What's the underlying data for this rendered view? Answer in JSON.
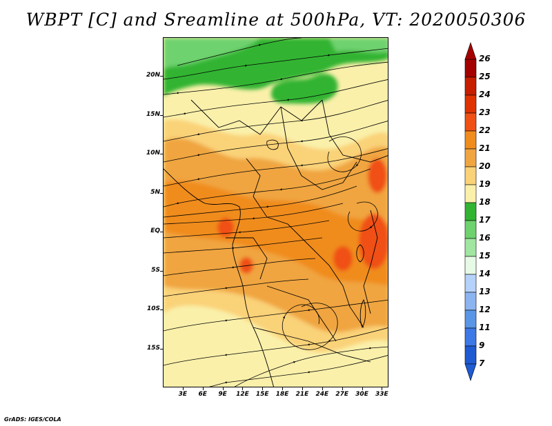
{
  "title": "WBPT [C] and Sreamline at 500hPa, VT: 2020050306",
  "credit": "GrADS: IGES/COLA",
  "map": {
    "lon_range": [
      0,
      34
    ],
    "lat_range": [
      -20,
      25
    ],
    "lat_ticks": [
      {
        "value": 20,
        "label": "20N"
      },
      {
        "value": 15,
        "label": "15N"
      },
      {
        "value": 10,
        "label": "10N"
      },
      {
        "value": 5,
        "label": "5N"
      },
      {
        "value": 0,
        "label": "EQ"
      },
      {
        "value": -5,
        "label": "5S"
      },
      {
        "value": -10,
        "label": "10S"
      },
      {
        "value": -15,
        "label": "15S"
      }
    ],
    "lon_ticks": [
      {
        "value": 3,
        "label": "3E"
      },
      {
        "value": 6,
        "label": "6E"
      },
      {
        "value": 9,
        "label": "9E"
      },
      {
        "value": 12,
        "label": "12E"
      },
      {
        "value": 15,
        "label": "15E"
      },
      {
        "value": 18,
        "label": "18E"
      },
      {
        "value": 21,
        "label": "21E"
      },
      {
        "value": 24,
        "label": "24E"
      },
      {
        "value": 27,
        "label": "27E"
      },
      {
        "value": 30,
        "label": "30E"
      },
      {
        "value": 33,
        "label": "33E"
      }
    ]
  },
  "colorbar": {
    "labels": [
      "26",
      "25",
      "24",
      "23",
      "22",
      "21",
      "20",
      "19",
      "18",
      "17",
      "16",
      "15",
      "14",
      "13",
      "12",
      "11",
      "9",
      "7"
    ],
    "colors": [
      "#a50000",
      "#c81e00",
      "#e03200",
      "#f05014",
      "#f08c1e",
      "#f0a541",
      "#fad278",
      "#faf0aa",
      "#32b432",
      "#6ed26e",
      "#a0e6a0",
      "#e6fae6",
      "#b4d2fa",
      "#8cb4f0",
      "#5a96e6",
      "#3c78e6",
      "#1e5ad2"
    ],
    "min_arrow_color": "#1e5ad2",
    "max_arrow_color": "#a50000"
  },
  "field_colors": {
    "lt18": "#faf0aa",
    "t18_19": "#faf0aa",
    "t19_20": "#fad278",
    "t20_21": "#f0a541",
    "t21_22": "#f08c1e",
    "t22_23": "#f05014",
    "green_dark": "#32b432",
    "green_mid": "#6ed26e"
  }
}
